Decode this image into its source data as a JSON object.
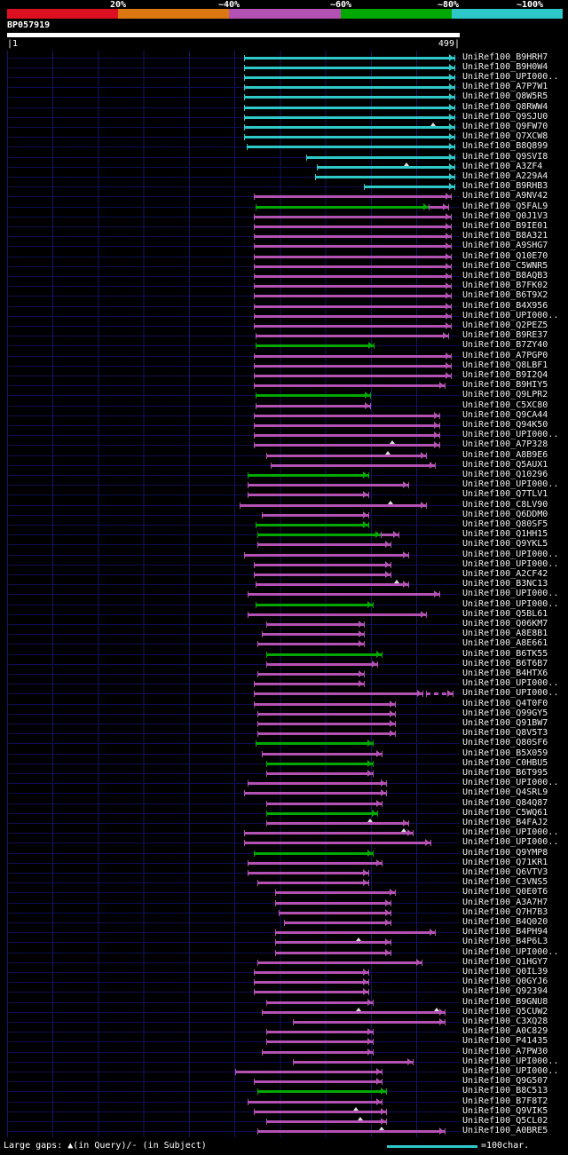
{
  "header": {
    "query_name": "BP057919",
    "axis_start": "|1",
    "axis_end": "499|",
    "scale": {
      "segments": [
        {
          "label": "20%",
          "color": "#dd1021"
        },
        {
          "label": "~40%",
          "color": "#dd7711"
        },
        {
          "label": "~60%",
          "color": "#b452b4"
        },
        {
          "label": "~80%",
          "color": "#00a800"
        },
        {
          "label": "~100%",
          "color": "#2fc8c8"
        }
      ]
    }
  },
  "footer": {
    "gaps_legend": "Large gaps: ▲(in Query)/- (in Subject)",
    "scale_legend": "=100char."
  },
  "colors": {
    "c": "#2fc8c8",
    "m": "#b452b4",
    "g": "#00a800"
  },
  "chart_data": {
    "type": "alignment-overview",
    "x_range": [
      1,
      499
    ],
    "color_key": {
      "c": "~100% identity",
      "g": "~80% identity",
      "m": "~60% identity"
    },
    "hits": [
      {
        "label": "UniRef100_B9HRH7",
        "segments": [
          [
            262,
            493,
            "c"
          ]
        ]
      },
      {
        "label": "UniRef100_B9H0W4",
        "segments": [
          [
            262,
            493,
            "c"
          ]
        ]
      },
      {
        "label": "UniRef100_UPI000..",
        "segments": [
          [
            262,
            493,
            "c"
          ]
        ]
      },
      {
        "label": "UniRef100_A7P7W1",
        "segments": [
          [
            262,
            493,
            "c"
          ]
        ]
      },
      {
        "label": "UniRef100_Q8W5R5",
        "segments": [
          [
            262,
            493,
            "c"
          ]
        ]
      },
      {
        "label": "UniRef100_Q8RWW4",
        "segments": [
          [
            262,
            493,
            "c"
          ]
        ]
      },
      {
        "label": "UniRef100_Q9SJU0",
        "segments": [
          [
            262,
            493,
            "c"
          ]
        ]
      },
      {
        "label": "UniRef100_Q9FW70",
        "segments": [
          [
            262,
            493,
            "c"
          ]
        ],
        "gaps": [
          470
        ]
      },
      {
        "label": "UniRef100_Q7XCW8",
        "segments": [
          [
            262,
            493,
            "c"
          ]
        ]
      },
      {
        "label": "UniRef100_B8Q899",
        "segments": [
          [
            265,
            493,
            "c"
          ]
        ]
      },
      {
        "label": "UniRef100_Q9SVI8",
        "segments": [
          [
            330,
            493,
            "c"
          ]
        ]
      },
      {
        "label": "UniRef100_A3ZF4",
        "segments": [
          [
            342,
            493,
            "c"
          ]
        ],
        "gaps": [
          440
        ]
      },
      {
        "label": "UniRef100_A229A4",
        "segments": [
          [
            340,
            493,
            "c"
          ]
        ]
      },
      {
        "label": "UniRef100_B9RHB3",
        "segments": [
          [
            394,
            493,
            "c"
          ]
        ]
      },
      {
        "label": "UniRef100_A9NV42",
        "segments": [
          [
            272,
            489,
            "m"
          ]
        ]
      },
      {
        "label": "UniRef100_Q5FAL9",
        "segments": [
          [
            274,
            465,
            "g"
          ],
          [
            465,
            486,
            "m"
          ]
        ]
      },
      {
        "label": "UniRef100_Q0J1V3",
        "segments": [
          [
            272,
            489,
            "m"
          ]
        ]
      },
      {
        "label": "UniRef100_B9IE01",
        "segments": [
          [
            272,
            489,
            "m"
          ]
        ]
      },
      {
        "label": "UniRef100_B8A321",
        "segments": [
          [
            272,
            489,
            "m"
          ]
        ]
      },
      {
        "label": "UniRef100_A9SHG7",
        "segments": [
          [
            272,
            489,
            "m"
          ]
        ]
      },
      {
        "label": "UniRef100_Q10E70",
        "segments": [
          [
            272,
            489,
            "m"
          ]
        ]
      },
      {
        "label": "UniRef100_C5WNR5",
        "segments": [
          [
            272,
            489,
            "m"
          ]
        ]
      },
      {
        "label": "UniRef100_B8AQB3",
        "segments": [
          [
            272,
            489,
            "m"
          ]
        ]
      },
      {
        "label": "UniRef100_B7FK02",
        "segments": [
          [
            272,
            489,
            "m"
          ]
        ]
      },
      {
        "label": "UniRef100_B6T9X2",
        "segments": [
          [
            272,
            489,
            "m"
          ]
        ]
      },
      {
        "label": "UniRef100_B4X956",
        "segments": [
          [
            272,
            489,
            "m"
          ]
        ]
      },
      {
        "label": "UniRef100_UPI000..",
        "segments": [
          [
            272,
            489,
            "m"
          ]
        ]
      },
      {
        "label": "UniRef100_Q2PEZ5",
        "segments": [
          [
            272,
            489,
            "m"
          ]
        ]
      },
      {
        "label": "UniRef100_B9RE37",
        "segments": [
          [
            274,
            486,
            "m"
          ]
        ]
      },
      {
        "label": "UniRef100_B7ZY40",
        "segments": [
          [
            274,
            404,
            "g"
          ]
        ]
      },
      {
        "label": "UniRef100_A7PGP0",
        "segments": [
          [
            272,
            489,
            "m"
          ]
        ]
      },
      {
        "label": "UniRef100_Q8LBF1",
        "segments": [
          [
            272,
            489,
            "m"
          ]
        ]
      },
      {
        "label": "UniRef100_B9I2Q4",
        "segments": [
          [
            272,
            489,
            "m"
          ]
        ]
      },
      {
        "label": "UniRef100_B9HIY5",
        "segments": [
          [
            272,
            482,
            "m"
          ]
        ]
      },
      {
        "label": "UniRef100_Q9LPR2",
        "segments": [
          [
            274,
            400,
            "g"
          ]
        ]
      },
      {
        "label": "UniRef100_C5XC80",
        "segments": [
          [
            274,
            400,
            "m"
          ]
        ]
      },
      {
        "label": "UniRef100_Q9CA44",
        "segments": [
          [
            272,
            477,
            "m"
          ]
        ]
      },
      {
        "label": "UniRef100_Q94K50",
        "segments": [
          [
            272,
            477,
            "m"
          ]
        ]
      },
      {
        "label": "UniRef100_UPI000..",
        "segments": [
          [
            272,
            477,
            "m"
          ]
        ]
      },
      {
        "label": "UniRef100_A7P328",
        "segments": [
          [
            272,
            477,
            "m"
          ]
        ],
        "gaps": [
          425
        ]
      },
      {
        "label": "UniRef100_A8B9E6",
        "segments": [
          [
            286,
            462,
            "m"
          ]
        ],
        "gaps": [
          420
        ]
      },
      {
        "label": "UniRef100_Q5AUX1",
        "segments": [
          [
            291,
            472,
            "m"
          ]
        ]
      },
      {
        "label": "UniRef100_Q10296",
        "segments": [
          [
            266,
            398,
            "g"
          ]
        ]
      },
      {
        "label": "UniRef100_UPI000..",
        "segments": [
          [
            266,
            442,
            "m"
          ]
        ]
      },
      {
        "label": "UniRef100_Q7TLV1",
        "segments": [
          [
            266,
            398,
            "m"
          ]
        ]
      },
      {
        "label": "UniRef100_C8LV90",
        "segments": [
          [
            257,
            462,
            "m"
          ]
        ],
        "gaps": [
          423
        ]
      },
      {
        "label": "UniRef100_Q6DDM0",
        "segments": [
          [
            281,
            398,
            "m"
          ]
        ]
      },
      {
        "label": "UniRef100_Q80SF5",
        "segments": [
          [
            274,
            398,
            "g"
          ]
        ]
      },
      {
        "label": "UniRef100_Q1HH15",
        "segments": [
          [
            276,
            412,
            "g"
          ],
          [
            412,
            432,
            "m"
          ]
        ]
      },
      {
        "label": "UniRef100_Q9YKL5",
        "segments": [
          [
            276,
            423,
            "m"
          ]
        ]
      },
      {
        "label": "UniRef100_UPI000..",
        "segments": [
          [
            262,
            442,
            "m"
          ]
        ]
      },
      {
        "label": "UniRef100_UPI000..",
        "segments": [
          [
            272,
            423,
            "m"
          ]
        ]
      },
      {
        "label": "UniRef100_A2CF42",
        "segments": [
          [
            272,
            423,
            "m"
          ]
        ]
      },
      {
        "label": "UniRef100_B3NC13",
        "segments": [
          [
            274,
            442,
            "m"
          ]
        ],
        "gaps": [
          430
        ]
      },
      {
        "label": "UniRef100_UPI000..",
        "segments": [
          [
            266,
            477,
            "m"
          ]
        ]
      },
      {
        "label": "UniRef100_UPI000..",
        "segments": [
          [
            274,
            403,
            "g"
          ]
        ]
      },
      {
        "label": "UniRef100_Q5BL61",
        "segments": [
          [
            266,
            462,
            "m"
          ]
        ]
      },
      {
        "label": "UniRef100_Q06KM7",
        "segments": [
          [
            286,
            394,
            "m"
          ]
        ]
      },
      {
        "label": "UniRef100_A8E8B1",
        "segments": [
          [
            281,
            394,
            "m"
          ]
        ]
      },
      {
        "label": "UniRef100_A8E661",
        "segments": [
          [
            276,
            394,
            "m"
          ]
        ]
      },
      {
        "label": "UniRef100_B6TK55",
        "segments": [
          [
            286,
            413,
            "g"
          ]
        ]
      },
      {
        "label": "UniRef100_B6T6B7",
        "segments": [
          [
            286,
            408,
            "m"
          ]
        ]
      },
      {
        "label": "UniRef100_B4HTX6",
        "segments": [
          [
            276,
            394,
            "m"
          ]
        ]
      },
      {
        "label": "UniRef100_UPI000..",
        "segments": [
          [
            272,
            394,
            "m"
          ]
        ]
      },
      {
        "label": "UniRef100_UPI000..",
        "segments": [
          [
            272,
            458,
            "m"
          ],
          [
            462,
            491,
            "m",
            "d"
          ]
        ]
      },
      {
        "label": "UniRef100_Q4T0F0",
        "segments": [
          [
            272,
            428,
            "m"
          ]
        ]
      },
      {
        "label": "UniRef100_Q99GY5",
        "segments": [
          [
            276,
            428,
            "m"
          ]
        ]
      },
      {
        "label": "UniRef100_Q91BW7",
        "segments": [
          [
            276,
            428,
            "m"
          ]
        ]
      },
      {
        "label": "UniRef100_Q8V5T3",
        "segments": [
          [
            276,
            428,
            "m"
          ]
        ]
      },
      {
        "label": "UniRef100_Q80SF6",
        "segments": [
          [
            274,
            403,
            "g"
          ]
        ]
      },
      {
        "label": "UniRef100_B5X059",
        "segments": [
          [
            281,
            413,
            "m"
          ]
        ]
      },
      {
        "label": "UniRef100_C0HBU5",
        "segments": [
          [
            286,
            403,
            "g"
          ]
        ]
      },
      {
        "label": "UniRef100_B6T995",
        "segments": [
          [
            286,
            403,
            "m"
          ]
        ]
      },
      {
        "label": "UniRef100_UPI000..",
        "segments": [
          [
            266,
            418,
            "m"
          ]
        ]
      },
      {
        "label": "UniRef100_Q4SRL9",
        "segments": [
          [
            262,
            418,
            "m"
          ]
        ]
      },
      {
        "label": "UniRef100_Q84Q87",
        "segments": [
          [
            286,
            413,
            "m"
          ]
        ]
      },
      {
        "label": "UniRef100_C5WQ61",
        "segments": [
          [
            286,
            408,
            "g"
          ]
        ]
      },
      {
        "label": "UniRef100_B4FAJ2",
        "segments": [
          [
            286,
            442,
            "m"
          ]
        ],
        "gaps": [
          400
        ]
      },
      {
        "label": "UniRef100_UPI000..",
        "segments": [
          [
            262,
            447,
            "m"
          ]
        ],
        "gaps": [
          437
        ]
      },
      {
        "label": "UniRef100_UPI000..",
        "segments": [
          [
            262,
            467,
            "m"
          ]
        ]
      },
      {
        "label": "UniRef100_Q9YMP8",
        "segments": [
          [
            272,
            403,
            "g"
          ]
        ]
      },
      {
        "label": "UniRef100_Q71KR1",
        "segments": [
          [
            266,
            413,
            "m"
          ]
        ]
      },
      {
        "label": "UniRef100_Q6VTV3",
        "segments": [
          [
            266,
            398,
            "m"
          ]
        ]
      },
      {
        "label": "UniRef100_C3VNS5",
        "segments": [
          [
            276,
            398,
            "m"
          ]
        ]
      },
      {
        "label": "UniRef100_Q0E0T6",
        "segments": [
          [
            296,
            428,
            "m"
          ]
        ]
      },
      {
        "label": "UniRef100_A3A7H7",
        "segments": [
          [
            296,
            423,
            "m"
          ]
        ]
      },
      {
        "label": "UniRef100_Q7H7B3",
        "segments": [
          [
            300,
            423,
            "m"
          ]
        ]
      },
      {
        "label": "UniRef100_B4Q020",
        "segments": [
          [
            306,
            423,
            "m"
          ]
        ]
      },
      {
        "label": "UniRef100_B4PH94",
        "segments": [
          [
            296,
            472,
            "m"
          ]
        ]
      },
      {
        "label": "UniRef100_B4P6L3",
        "segments": [
          [
            296,
            423,
            "m"
          ]
        ],
        "gaps": [
          388
        ]
      },
      {
        "label": "UniRef100_UPI000..",
        "segments": [
          [
            296,
            423,
            "m"
          ]
        ]
      },
      {
        "label": "UniRef100_Q1HGY7",
        "segments": [
          [
            276,
            457,
            "m"
          ]
        ]
      },
      {
        "label": "UniRef100_Q0IL39",
        "segments": [
          [
            272,
            398,
            "m"
          ]
        ]
      },
      {
        "label": "UniRef100_Q0GYJ6",
        "segments": [
          [
            272,
            398,
            "m"
          ]
        ]
      },
      {
        "label": "UniRef100_Q92394",
        "segments": [
          [
            272,
            398,
            "m"
          ]
        ]
      },
      {
        "label": "UniRef100_B9GNU8",
        "segments": [
          [
            286,
            403,
            "m"
          ]
        ]
      },
      {
        "label": "UniRef100_Q5CUW2",
        "segments": [
          [
            281,
            482,
            "m"
          ]
        ],
        "gaps": [
          388,
          474
        ]
      },
      {
        "label": "UniRef100_C3XQ28",
        "segments": [
          [
            315,
            482,
            "m"
          ]
        ]
      },
      {
        "label": "UniRef100_A0C829",
        "segments": [
          [
            286,
            403,
            "m"
          ]
        ]
      },
      {
        "label": "UniRef100_P41435",
        "segments": [
          [
            286,
            403,
            "m"
          ]
        ]
      },
      {
        "label": "UniRef100_A7PW30",
        "segments": [
          [
            281,
            403,
            "m"
          ]
        ]
      },
      {
        "label": "UniRef100_UPI000..",
        "segments": [
          [
            315,
            447,
            "m"
          ]
        ]
      },
      {
        "label": "UniRef100_UPI000..",
        "segments": [
          [
            252,
            413,
            "m"
          ]
        ]
      },
      {
        "label": "UniRef100_Q9G507",
        "segments": [
          [
            272,
            413,
            "m"
          ]
        ]
      },
      {
        "label": "UniRef100_B8C513",
        "segments": [
          [
            276,
            418,
            "g"
          ]
        ]
      },
      {
        "label": "UniRef100_B7F8T2",
        "segments": [
          [
            266,
            413,
            "m"
          ]
        ]
      },
      {
        "label": "UniRef100_Q9VIK5",
        "segments": [
          [
            272,
            418,
            "m"
          ]
        ],
        "gaps": [
          385
        ]
      },
      {
        "label": "UniRef100_Q5CL02",
        "segments": [
          [
            286,
            418,
            "m"
          ]
        ],
        "gaps": [
          390
        ]
      },
      {
        "label": "UniRef100_A0BRE5",
        "segments": [
          [
            276,
            482,
            "m"
          ]
        ],
        "gaps": [
          413
        ]
      }
    ]
  }
}
